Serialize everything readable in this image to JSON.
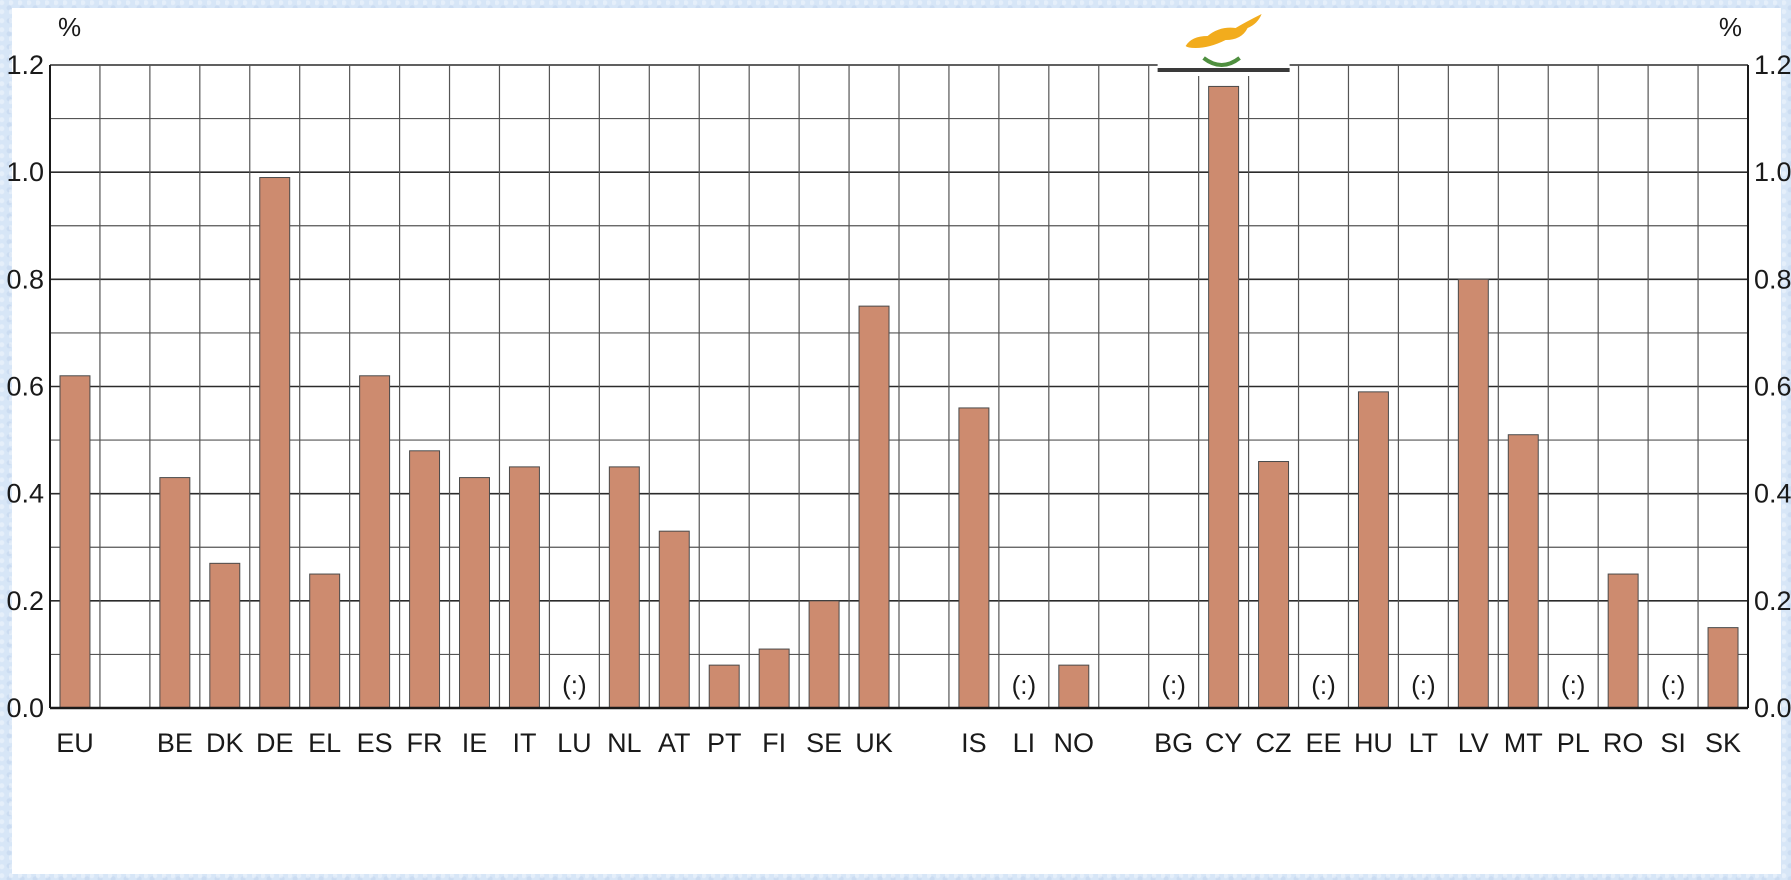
{
  "chart_data": {
    "type": "bar",
    "unit": "%",
    "ylim": [
      0,
      1.2
    ],
    "y_ticks": [
      "0.0",
      "0.2",
      "0.4",
      "0.6",
      "0.8",
      "1.0",
      "1.2"
    ],
    "grid": true,
    "bar_color": "#cd8b6f",
    "na_marker": "(:)",
    "categories": [
      "EU",
      "",
      "BE",
      "DK",
      "DE",
      "EL",
      "ES",
      "FR",
      "IE",
      "IT",
      "LU",
      "NL",
      "AT",
      "PT",
      "FI",
      "SE",
      "UK",
      "",
      "IS",
      "LI",
      "NO",
      "",
      "BG",
      "CY",
      "CZ",
      "EE",
      "HU",
      "LT",
      "LV",
      "MT",
      "PL",
      "RO",
      "SI",
      "SK"
    ],
    "values": [
      0.62,
      null,
      0.43,
      0.27,
      0.99,
      0.25,
      0.62,
      0.48,
      0.43,
      0.45,
      null,
      0.45,
      0.33,
      0.08,
      0.11,
      0.2,
      0.75,
      null,
      0.56,
      null,
      0.08,
      null,
      null,
      1.16,
      0.46,
      null,
      0.59,
      null,
      0.8,
      0.51,
      null,
      0.25,
      null,
      0.15
    ],
    "not_available": [
      "LU",
      "LI",
      "BG",
      "EE",
      "LT",
      "PL",
      "SI"
    ],
    "highlight": {
      "category": "CY",
      "icon": "cyprus-flag-icon"
    }
  }
}
